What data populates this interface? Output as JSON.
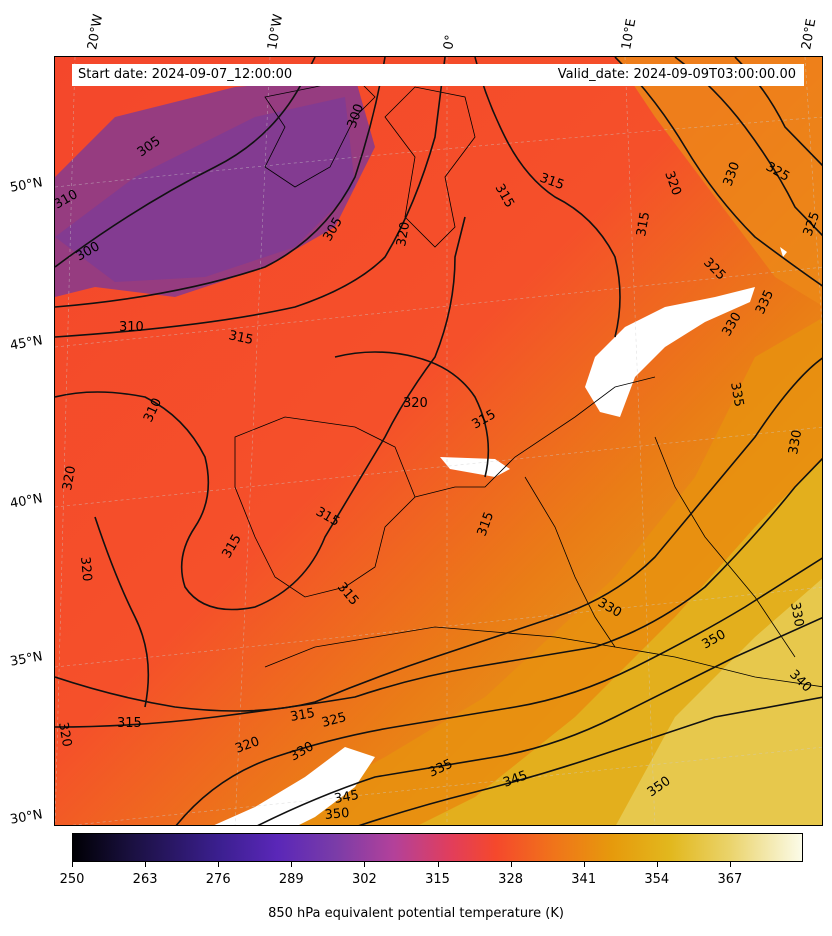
{
  "header": {
    "start_date": "Start date: 2024-09-07_12:00:00",
    "valid_date": "Valid_date: 2024-09-09T03:00:00.00"
  },
  "longitude_labels": [
    "20°W",
    "10°W",
    "0°",
    "10°E",
    "20°E"
  ],
  "latitude_labels": [
    "50°N",
    "45°N",
    "40°N",
    "35°N",
    "30°N"
  ],
  "contour_labels": [
    "300",
    "305",
    "310",
    "315",
    "320",
    "325",
    "330",
    "335",
    "340",
    "345",
    "350"
  ],
  "colorbar": {
    "ticks": [
      "250",
      "263",
      "276",
      "289",
      "302",
      "315",
      "328",
      "341",
      "354",
      "367"
    ],
    "label": "850 hPa equivalent potential temperature (K)",
    "colormap": "CMRmap-like dark-purple-red-orange-yellow-white"
  },
  "colors": {
    "cold_purple": "#8a3a8a",
    "mid_red": "#f5482c",
    "warm_orange": "#e68a10",
    "hot_yellow": "#e5c53a"
  }
}
